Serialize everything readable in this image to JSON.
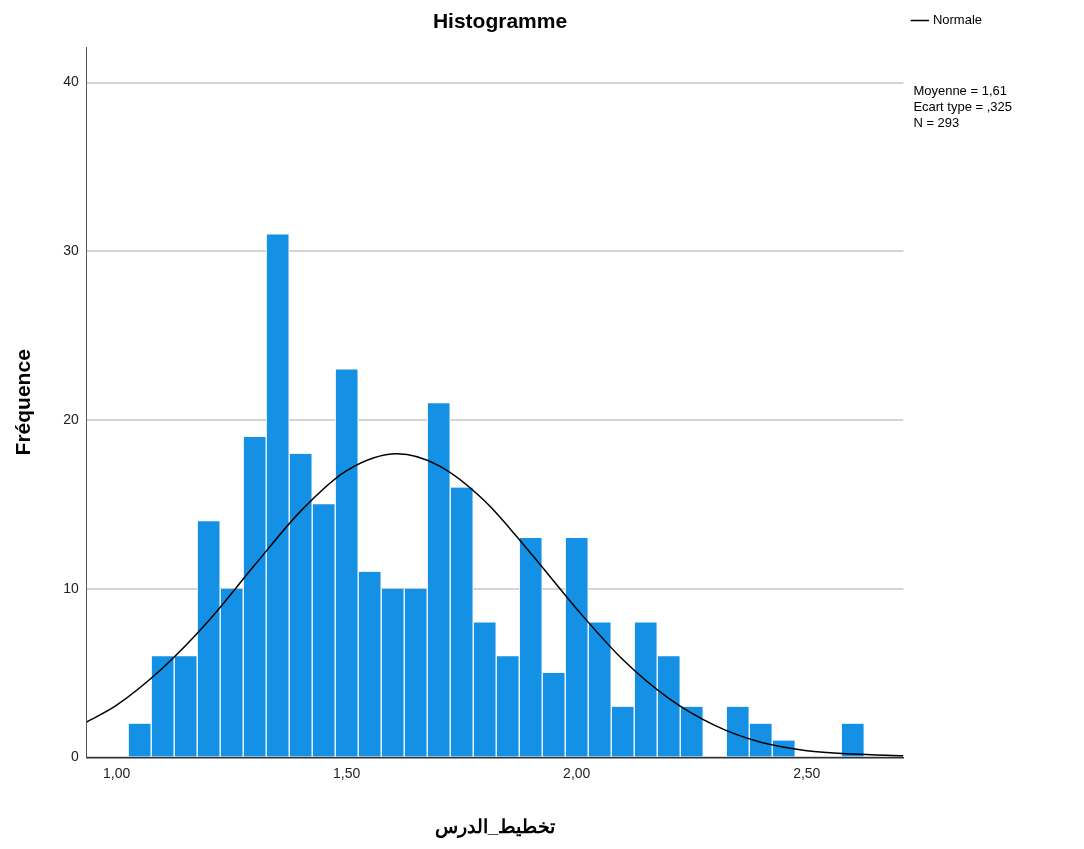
{
  "chart_data": {
    "type": "histogram",
    "title": "Histogramme",
    "xlabel": "تخطيط_الدرس",
    "ylabel": "Fréquence",
    "xlim": [
      0.935,
      2.71
    ],
    "xticks": [
      {
        "value": 1,
        "label": "1,00"
      },
      {
        "value": 1.5,
        "label": "1,50"
      },
      {
        "value": 2,
        "label": "2,00"
      },
      {
        "value": 2.5,
        "label": "2,50"
      }
    ],
    "ylim": [
      0,
      42.1
    ],
    "yticks": [
      0,
      10,
      20,
      30,
      40
    ],
    "grid": "y",
    "legend": "top right",
    "annotations": [
      "Moyenne = 1,61",
      "Ecart type = ,325",
      "N = 293"
    ],
    "series": [
      {
        "color": "#1490e4",
        "bins": [
          1.025,
          1.075,
          1.125,
          1.175,
          1.225,
          1.275,
          1.325,
          1.375,
          1.425,
          1.475,
          1.525,
          1.575,
          1.625,
          1.675,
          1.725,
          1.775,
          1.825,
          1.875,
          1.925,
          1.975,
          2.025,
          2.075,
          2.125,
          2.175,
          2.225,
          2.275,
          2.325,
          2.375,
          2.425,
          2.475,
          2.525,
          2.575,
          2.625
        ],
        "values": [
          2,
          6,
          6,
          14,
          10,
          19,
          31,
          18,
          15,
          23,
          11,
          10,
          10,
          21,
          16,
          8,
          6,
          13,
          5,
          13,
          8,
          3,
          8,
          6,
          3,
          0,
          3,
          2,
          1,
          0,
          0,
          2
        ]
      },
      {
        "type": "line",
        "name": "Normale",
        "color": "#000000",
        "x": [
          0.935,
          1.0,
          1.1,
          1.2,
          1.3,
          1.4,
          1.5,
          1.61,
          1.7,
          1.8,
          1.9,
          2.0,
          2.1,
          2.2,
          2.3,
          2.4,
          2.5,
          2.6,
          2.71
        ],
        "values": [
          2.1,
          3.1,
          5.3,
          8.1,
          11.4,
          14.6,
          17.0,
          18.0,
          17.3,
          15.2,
          12.1,
          8.8,
          5.8,
          3.5,
          1.9,
          0.9,
          0.4,
          0.2,
          0.1
        ]
      }
    ]
  }
}
